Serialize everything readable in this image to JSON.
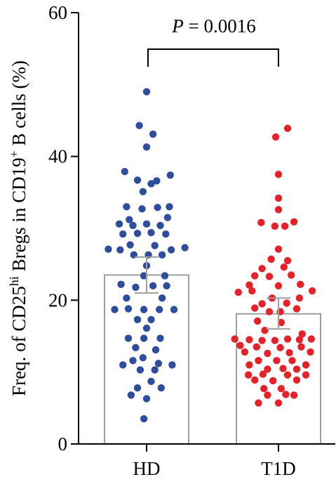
{
  "chart_data": {
    "type": "scatter",
    "subtype": "bar-with-dot-scatter",
    "categories": [
      "HD",
      "T1D"
    ],
    "ylabel": {
      "prefix": "Freq. of CD25",
      "sup1": "hi",
      "middle": " Bregs in CD19",
      "sup2": "+",
      "suffix": " B cells (%)"
    },
    "ylim": [
      0,
      60
    ],
    "yticks": [
      "0",
      "20",
      "40",
      "60"
    ],
    "grid": false,
    "annotation": {
      "p_symbol": "P",
      "p_text": " = 0.0016"
    },
    "colors": {
      "HD": "#2e4d9c",
      "T1D": "#e52229",
      "bar_edge": "#9e9e9e",
      "axis": "#000000"
    },
    "series": [
      {
        "category": "HD",
        "mean": 23.5,
        "error": [
          21.0,
          26.0
        ],
        "points": [
          {
            "x": 0.0,
            "y": 49.0
          },
          {
            "x": -0.08,
            "y": 44.3
          },
          {
            "x": 0.07,
            "y": 43.1
          },
          {
            "x": 0.0,
            "y": 41.3
          },
          {
            "x": -0.24,
            "y": 37.9
          },
          {
            "x": -0.1,
            "y": 36.7
          },
          {
            "x": 0.05,
            "y": 36.2
          },
          {
            "x": 0.11,
            "y": 36.6
          },
          {
            "x": 0.26,
            "y": 37.4
          },
          {
            "x": -0.04,
            "y": 35.1
          },
          {
            "x": -0.22,
            "y": 33.0
          },
          {
            "x": -0.05,
            "y": 32.7
          },
          {
            "x": 0.12,
            "y": 32.9
          },
          {
            "x": 0.25,
            "y": 33.0
          },
          {
            "x": -0.19,
            "y": 31.2
          },
          {
            "x": 0.23,
            "y": 31.5
          },
          {
            "x": -0.3,
            "y": 30.6
          },
          {
            "x": -0.15,
            "y": 30.4
          },
          {
            "x": 0.0,
            "y": 30.6
          },
          {
            "x": 0.15,
            "y": 30.4
          },
          {
            "x": -0.26,
            "y": 29.2
          },
          {
            "x": -0.1,
            "y": 29.3
          },
          {
            "x": 0.05,
            "y": 29.4
          },
          {
            "x": 0.21,
            "y": 29.2
          },
          {
            "x": -0.18,
            "y": 27.7
          },
          {
            "x": 0.09,
            "y": 27.6
          },
          {
            "x": -0.42,
            "y": 27.1
          },
          {
            "x": -0.29,
            "y": 27.0
          },
          {
            "x": 0.27,
            "y": 27.0
          },
          {
            "x": 0.42,
            "y": 27.3
          },
          {
            "x": -0.14,
            "y": 26.3
          },
          {
            "x": 0.02,
            "y": 26.3
          },
          {
            "x": 0.17,
            "y": 26.3
          },
          {
            "x": 0.0,
            "y": 24.8
          },
          {
            "x": -0.03,
            "y": 23.4
          },
          {
            "x": 0.2,
            "y": 23.4
          },
          {
            "x": -0.28,
            "y": 22.2
          },
          {
            "x": -0.12,
            "y": 21.8
          },
          {
            "x": 0.07,
            "y": 22.0
          },
          {
            "x": 0.22,
            "y": 22.0
          },
          {
            "x": -0.22,
            "y": 20.3
          },
          {
            "x": 0.17,
            "y": 20.3
          },
          {
            "x": -0.35,
            "y": 18.7
          },
          {
            "x": -0.2,
            "y": 18.8
          },
          {
            "x": -0.03,
            "y": 18.7
          },
          {
            "x": 0.14,
            "y": 18.7
          },
          {
            "x": 0.3,
            "y": 18.7
          },
          {
            "x": -0.1,
            "y": 17.3
          },
          {
            "x": 0.05,
            "y": 17.3
          },
          {
            "x": 0.0,
            "y": 16.1
          },
          {
            "x": -0.2,
            "y": 14.7
          },
          {
            "x": -0.03,
            "y": 14.7
          },
          {
            "x": 0.15,
            "y": 14.7
          },
          {
            "x": -0.12,
            "y": 13.4
          },
          {
            "x": 0.1,
            "y": 13.1
          },
          {
            "x": -0.15,
            "y": 11.6
          },
          {
            "x": -0.04,
            "y": 12.0
          },
          {
            "x": 0.13,
            "y": 11.2
          },
          {
            "x": -0.26,
            "y": 11.0
          },
          {
            "x": 0.28,
            "y": 11.0
          },
          {
            "x": -0.07,
            "y": 10.3
          },
          {
            "x": 0.09,
            "y": 10.3
          },
          {
            "x": 0.05,
            "y": 8.7
          },
          {
            "x": -0.1,
            "y": 7.8
          },
          {
            "x": 0.16,
            "y": 7.8
          },
          {
            "x": -0.17,
            "y": 6.8
          },
          {
            "x": 0.0,
            "y": 6.3
          },
          {
            "x": -0.03,
            "y": 3.5
          }
        ]
      },
      {
        "category": "T1D",
        "mean": 18.1,
        "error": [
          16.0,
          20.3
        ],
        "points": [
          {
            "x": 0.1,
            "y": 43.9
          },
          {
            "x": -0.03,
            "y": 42.7
          },
          {
            "x": 0.0,
            "y": 37.5
          },
          {
            "x": 0.0,
            "y": 34.2
          },
          {
            "x": 0.0,
            "y": 32.6
          },
          {
            "x": -0.19,
            "y": 30.8
          },
          {
            "x": -0.04,
            "y": 30.3
          },
          {
            "x": 0.07,
            "y": 30.3
          },
          {
            "x": 0.17,
            "y": 30.9
          },
          {
            "x": 0.0,
            "y": 27.1
          },
          {
            "x": -0.08,
            "y": 25.7
          },
          {
            "x": 0.1,
            "y": 25.5
          },
          {
            "x": -0.18,
            "y": 24.4
          },
          {
            "x": 0.06,
            "y": 24.6
          },
          {
            "x": -0.26,
            "y": 23.4
          },
          {
            "x": -0.1,
            "y": 23.3
          },
          {
            "x": 0.14,
            "y": 23.5
          },
          {
            "x": -0.32,
            "y": 22.1
          },
          {
            "x": 0.0,
            "y": 22.0
          },
          {
            "x": 0.24,
            "y": 22.2
          },
          {
            "x": -0.44,
            "y": 21.1
          },
          {
            "x": -0.29,
            "y": 21.3
          },
          {
            "x": 0.37,
            "y": 21.3
          },
          {
            "x": -0.07,
            "y": 20.3
          },
          {
            "x": 0.23,
            "y": 20.3
          },
          {
            "x": -0.18,
            "y": 19.5
          },
          {
            "x": 0.09,
            "y": 19.6
          },
          {
            "x": -0.26,
            "y": 18.9
          },
          {
            "x": 0.2,
            "y": 18.8
          },
          {
            "x": -0.1,
            "y": 18.4
          },
          {
            "x": 0.02,
            "y": 18.4
          },
          {
            "x": -0.23,
            "y": 17.1
          },
          {
            "x": 0.03,
            "y": 16.9
          },
          {
            "x": -0.15,
            "y": 15.8
          },
          {
            "x": 0.26,
            "y": 15.3
          },
          {
            "x": -0.48,
            "y": 14.6
          },
          {
            "x": -0.32,
            "y": 14.5
          },
          {
            "x": -0.18,
            "y": 14.4
          },
          {
            "x": -0.04,
            "y": 14.4
          },
          {
            "x": 0.1,
            "y": 14.6
          },
          {
            "x": 0.23,
            "y": 14.5
          },
          {
            "x": 0.36,
            "y": 14.6
          },
          {
            "x": -0.42,
            "y": 13.7
          },
          {
            "x": -0.24,
            "y": 13.5
          },
          {
            "x": 0.02,
            "y": 13.4
          },
          {
            "x": 0.25,
            "y": 13.5
          },
          {
            "x": -0.37,
            "y": 12.8
          },
          {
            "x": -0.12,
            "y": 12.6
          },
          {
            "x": 0.12,
            "y": 12.7
          },
          {
            "x": 0.35,
            "y": 12.8
          },
          {
            "x": -0.22,
            "y": 11.6
          },
          {
            "x": -0.02,
            "y": 11.6
          },
          {
            "x": 0.15,
            "y": 11.6
          },
          {
            "x": -0.32,
            "y": 11.0
          },
          {
            "x": 0.3,
            "y": 11.0
          },
          {
            "x": -0.12,
            "y": 10.4
          },
          {
            "x": 0.05,
            "y": 10.5
          },
          {
            "x": 0.2,
            "y": 10.4
          },
          {
            "x": -0.33,
            "y": 9.6
          },
          {
            "x": -0.17,
            "y": 9.7
          },
          {
            "x": 0.1,
            "y": 9.6
          },
          {
            "x": 0.3,
            "y": 9.6
          },
          {
            "x": -0.26,
            "y": 8.9
          },
          {
            "x": -0.06,
            "y": 8.8
          },
          {
            "x": 0.2,
            "y": 8.9
          },
          {
            "x": -0.16,
            "y": 7.7
          },
          {
            "x": 0.03,
            "y": 7.7
          },
          {
            "x": -0.12,
            "y": 6.8
          },
          {
            "x": 0.08,
            "y": 6.9
          },
          {
            "x": 0.17,
            "y": 6.8
          },
          {
            "x": -0.22,
            "y": 5.7
          },
          {
            "x": 0.0,
            "y": 5.7
          }
        ]
      }
    ]
  }
}
